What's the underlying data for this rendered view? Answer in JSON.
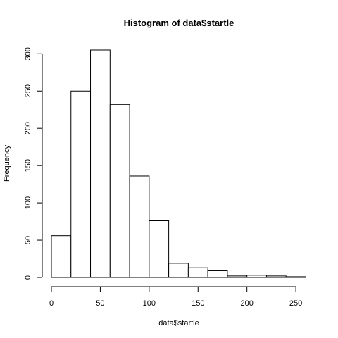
{
  "chart_data": {
    "type": "bar",
    "title": "Histogram of data$startle",
    "xlabel": "data$startle",
    "ylabel": "Frequency",
    "bin_width": 20,
    "bins": [
      {
        "start": 0,
        "end": 20,
        "count": 56
      },
      {
        "start": 20,
        "end": 40,
        "count": 250
      },
      {
        "start": 40,
        "end": 60,
        "count": 305
      },
      {
        "start": 60,
        "end": 80,
        "count": 232
      },
      {
        "start": 80,
        "end": 100,
        "count": 136
      },
      {
        "start": 100,
        "end": 120,
        "count": 76
      },
      {
        "start": 120,
        "end": 140,
        "count": 19
      },
      {
        "start": 140,
        "end": 160,
        "count": 13
      },
      {
        "start": 160,
        "end": 180,
        "count": 9
      },
      {
        "start": 180,
        "end": 200,
        "count": 2
      },
      {
        "start": 200,
        "end": 220,
        "count": 3
      },
      {
        "start": 220,
        "end": 240,
        "count": 2
      },
      {
        "start": 240,
        "end": 260,
        "count": 1
      }
    ],
    "xticks": [
      "0",
      "50",
      "100",
      "150",
      "200",
      "250"
    ],
    "yticks": [
      "0",
      "50",
      "100",
      "150",
      "200",
      "250",
      "300"
    ],
    "xlim": [
      0,
      260
    ],
    "ylim": [
      0,
      305
    ],
    "grid": false,
    "colors": {
      "bar_fill": "#ffffff",
      "bar_stroke": "#000000"
    }
  }
}
